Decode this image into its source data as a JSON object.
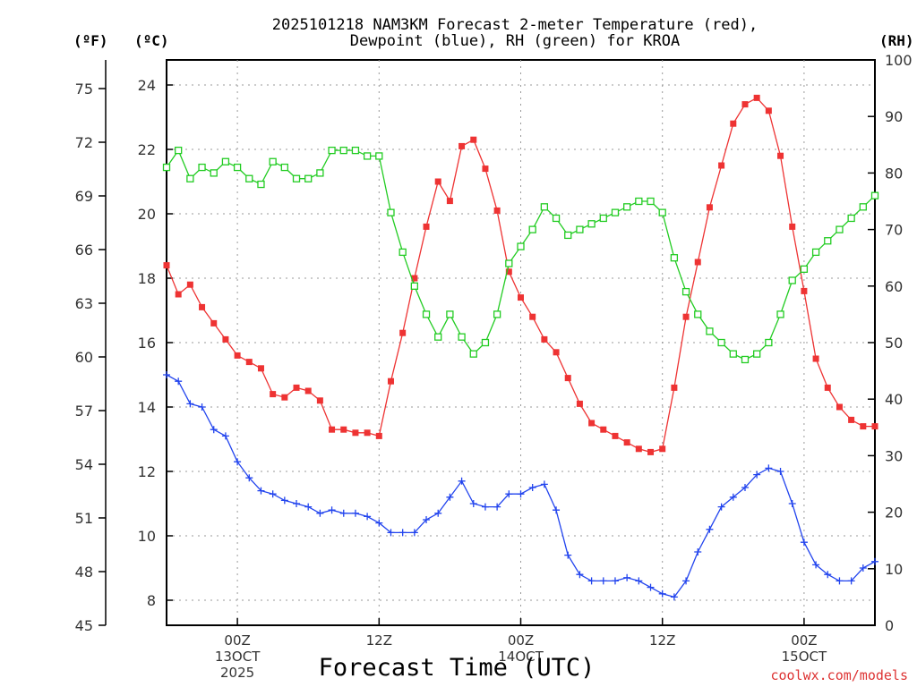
{
  "chart_data": {
    "type": "line",
    "title_lines": [
      "2025101218 NAM3KM Forecast 2-meter Temperature (red),",
      "Dewpoint (blue), RH (green) for KROA"
    ],
    "xlabel": "Forecast Time (UTC)",
    "unit_labels": {
      "fahrenheit": "(ºF)",
      "celsius": "(ºC)",
      "rh": "(RH)"
    },
    "credit": "coolwx.com/models",
    "x_hours_range": [
      0,
      60
    ],
    "y_celsius_range": [
      7.222,
      24.778
    ],
    "y_rh_range": [
      0,
      100
    ],
    "celsius_ticks": [
      "8",
      "10",
      "12",
      "14",
      "16",
      "18",
      "20",
      "22",
      "24"
    ],
    "fahrenheit_ticks": [
      "45",
      "48",
      "51",
      "54",
      "57",
      "60",
      "63",
      "66",
      "69",
      "72",
      "75"
    ],
    "rh_ticks": [
      "0",
      "10",
      "20",
      "30",
      "40",
      "50",
      "60",
      "70",
      "80",
      "90",
      "100"
    ],
    "x_ticks": [
      {
        "hour": 6,
        "lines": [
          "00Z",
          "13OCT",
          "2025"
        ]
      },
      {
        "hour": 18,
        "lines": [
          "12Z"
        ]
      },
      {
        "hour": 30,
        "lines": [
          "00Z",
          "14OCT"
        ]
      },
      {
        "hour": 42,
        "lines": [
          "12Z"
        ]
      },
      {
        "hour": 54,
        "lines": [
          "00Z",
          "15OCT"
        ]
      }
    ],
    "series": [
      {
        "name": "2-meter Temperature (°C)",
        "color": "#ee3333",
        "axis": "celsius",
        "marker": "filled-square",
        "values": [
          18.4,
          17.5,
          17.8,
          17.1,
          16.6,
          16.1,
          15.6,
          15.4,
          15.2,
          14.4,
          14.3,
          14.6,
          14.5,
          14.2,
          13.3,
          13.3,
          13.2,
          13.2,
          13.1,
          14.8,
          16.3,
          18.0,
          19.6,
          21.0,
          20.4,
          22.1,
          22.3,
          21.4,
          20.1,
          18.2,
          17.4,
          16.8,
          16.1,
          15.7,
          14.9,
          14.1,
          13.5,
          13.3,
          13.1,
          12.9,
          12.7,
          12.6,
          12.7,
          14.6,
          16.8,
          18.5,
          20.2,
          21.5,
          22.8,
          23.4,
          23.6,
          23.2,
          21.8,
          19.6,
          17.6,
          15.5,
          14.6,
          14.0,
          13.6,
          13.4,
          13.4
        ]
      },
      {
        "name": "Dewpoint (°C)",
        "color": "#2244ee",
        "axis": "celsius",
        "marker": "plus",
        "values": [
          15.0,
          14.8,
          14.1,
          14.0,
          13.3,
          13.1,
          12.3,
          11.8,
          11.4,
          11.3,
          11.1,
          11.0,
          10.9,
          10.7,
          10.8,
          10.7,
          10.7,
          10.6,
          10.4,
          10.1,
          10.1,
          10.1,
          10.5,
          10.7,
          11.2,
          11.7,
          11.0,
          10.9,
          10.9,
          11.3,
          11.3,
          11.5,
          11.6,
          10.8,
          9.4,
          8.8,
          8.6,
          8.6,
          8.6,
          8.7,
          8.6,
          8.4,
          8.2,
          8.1,
          8.6,
          9.5,
          10.2,
          10.9,
          11.2,
          11.5,
          11.9,
          12.1,
          12.0,
          11.0,
          9.8,
          9.1,
          8.8,
          8.6,
          8.6,
          9.0,
          9.2
        ]
      },
      {
        "name": "RH (%)",
        "color": "#22cc22",
        "axis": "rh",
        "marker": "open-square",
        "values": [
          81,
          84,
          79,
          81,
          80,
          82,
          81,
          79,
          78,
          82,
          81,
          79,
          79,
          80,
          84,
          84,
          84,
          83,
          83,
          73,
          66,
          60,
          55,
          51,
          55,
          51,
          48,
          50,
          55,
          64,
          67,
          70,
          74,
          72,
          69,
          70,
          71,
          72,
          73,
          74,
          75,
          75,
          73,
          65,
          59,
          55,
          52,
          50,
          48,
          47,
          48,
          50,
          55,
          61,
          63,
          66,
          68,
          70,
          72,
          74,
          76
        ]
      }
    ]
  }
}
